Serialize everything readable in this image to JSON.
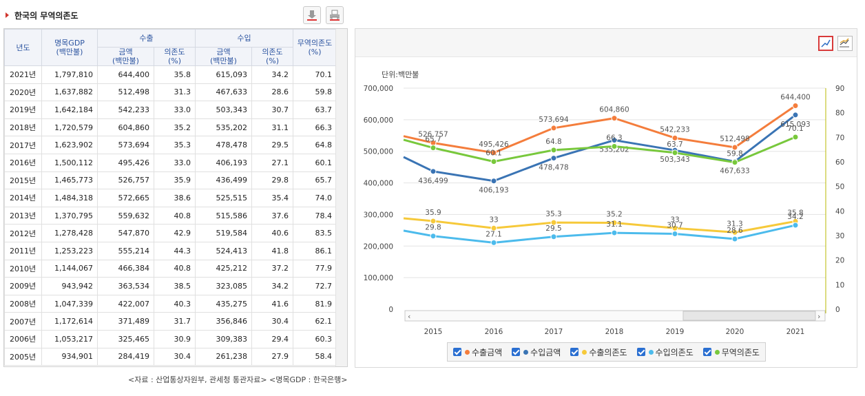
{
  "header": {
    "title": "한국의 무역의존도"
  },
  "table": {
    "col_year": "년도",
    "col_gdp": "명목GDP\n(백만불)",
    "col_export": "수출",
    "col_import": "수입",
    "col_amount": "금액\n(백만불)",
    "col_dep": "의존도\n(%)",
    "col_trade_dep": "무역의존도\n(%)",
    "rows": [
      [
        "2021년",
        "1,797,810",
        "644,400",
        "35.8",
        "615,093",
        "34.2",
        "70.1"
      ],
      [
        "2020년",
        "1,637,882",
        "512,498",
        "31.3",
        "467,633",
        "28.6",
        "59.8"
      ],
      [
        "2019년",
        "1,642,184",
        "542,233",
        "33.0",
        "503,343",
        "30.7",
        "63.7"
      ],
      [
        "2018년",
        "1,720,579",
        "604,860",
        "35.2",
        "535,202",
        "31.1",
        "66.3"
      ],
      [
        "2017년",
        "1,623,902",
        "573,694",
        "35.3",
        "478,478",
        "29.5",
        "64.8"
      ],
      [
        "2016년",
        "1,500,112",
        "495,426",
        "33.0",
        "406,193",
        "27.1",
        "60.1"
      ],
      [
        "2015년",
        "1,465,773",
        "526,757",
        "35.9",
        "436,499",
        "29.8",
        "65.7"
      ],
      [
        "2014년",
        "1,484,318",
        "572,665",
        "38.6",
        "525,515",
        "35.4",
        "74.0"
      ],
      [
        "2013년",
        "1,370,795",
        "559,632",
        "40.8",
        "515,586",
        "37.6",
        "78.4"
      ],
      [
        "2012년",
        "1,278,428",
        "547,870",
        "42.9",
        "519,584",
        "40.6",
        "83.5"
      ],
      [
        "2011년",
        "1,253,223",
        "555,214",
        "44.3",
        "524,413",
        "41.8",
        "86.1"
      ],
      [
        "2010년",
        "1,144,067",
        "466,384",
        "40.8",
        "425,212",
        "37.2",
        "77.9"
      ],
      [
        "2009년",
        "943,942",
        "363,534",
        "38.5",
        "323,085",
        "34.2",
        "72.7"
      ],
      [
        "2008년",
        "1,047,339",
        "422,007",
        "40.3",
        "435,275",
        "41.6",
        "81.9"
      ],
      [
        "2007년",
        "1,172,614",
        "371,489",
        "31.7",
        "356,846",
        "30.4",
        "62.1"
      ],
      [
        "2006년",
        "1,053,217",
        "325,465",
        "30.9",
        "309,383",
        "29.4",
        "60.3"
      ],
      [
        "2005년",
        "934,901",
        "284,419",
        "30.4",
        "261,238",
        "27.9",
        "58.4"
      ]
    ]
  },
  "source_note": "<자료 : 산업통상자원부, 관세청 통관자료> <명목GDP : 한국은행>",
  "chart_data": {
    "type": "line",
    "unit_label": "단위:백만불",
    "categories": [
      "2015",
      "2016",
      "2017",
      "2018",
      "2019",
      "2020",
      "2021"
    ],
    "y_left": {
      "min": 0,
      "max": 700000,
      "ticks": [
        "0",
        "100,000",
        "200,000",
        "300,000",
        "400,000",
        "500,000",
        "600,000",
        "700,000"
      ]
    },
    "y_right": {
      "min": 0,
      "max": 90,
      "ticks": [
        "0",
        "10",
        "20",
        "30",
        "40",
        "50",
        "60",
        "70",
        "80",
        "90"
      ]
    },
    "series": [
      {
        "name": "수출금액",
        "axis": "left",
        "color": "#f47d3c",
        "values": [
          526757,
          495426,
          573694,
          604860,
          542233,
          512498,
          644400
        ],
        "labels": [
          "526,757",
          "495,426",
          "573,694",
          "604,860",
          "542,233",
          "512,498",
          "644,400"
        ],
        "label_pos": "above"
      },
      {
        "name": "수입금액",
        "axis": "left",
        "color": "#3a74b4",
        "values": [
          436499,
          406193,
          478478,
          535202,
          503343,
          467633,
          615093
        ],
        "labels": [
          "436,499",
          "406,193",
          "478,478",
          "535,202",
          "503,343",
          "467,633",
          "615,093"
        ],
        "label_pos": "below"
      },
      {
        "name": "수출의존도",
        "axis": "right",
        "color": "#f6c93a",
        "values": [
          35.9,
          33,
          35.3,
          35.2,
          33,
          31.3,
          35.8
        ],
        "labels": [
          "35.9",
          "33",
          "35.3",
          "35.2",
          "33",
          "31.3",
          "35.8"
        ],
        "label_pos": "above"
      },
      {
        "name": "수입의존도",
        "axis": "right",
        "color": "#4cbbec",
        "values": [
          29.8,
          27.1,
          29.5,
          31.1,
          30.7,
          28.6,
          34.2
        ],
        "labels": [
          "29.8",
          "27.1",
          "29.5",
          "31.1",
          "30.7",
          "28.6",
          "34.2"
        ],
        "label_pos": "above"
      },
      {
        "name": "무역의존도",
        "axis": "right",
        "color": "#78c83c",
        "values": [
          65.7,
          60.1,
          64.8,
          66.3,
          63.7,
          59.8,
          70.1
        ],
        "labels": [
          "65.7",
          "60.1",
          "64.8",
          "66.3",
          "63.7",
          "59.8",
          "70.1"
        ],
        "label_pos": "above"
      }
    ],
    "left_edge": {
      "수출금액": 548000,
      "수입금액": 482000,
      "수출의존도": 37.0,
      "수입의존도": 32.0,
      "무역의존도": 69.0
    },
    "grid": true,
    "legend_position": "bottom"
  }
}
